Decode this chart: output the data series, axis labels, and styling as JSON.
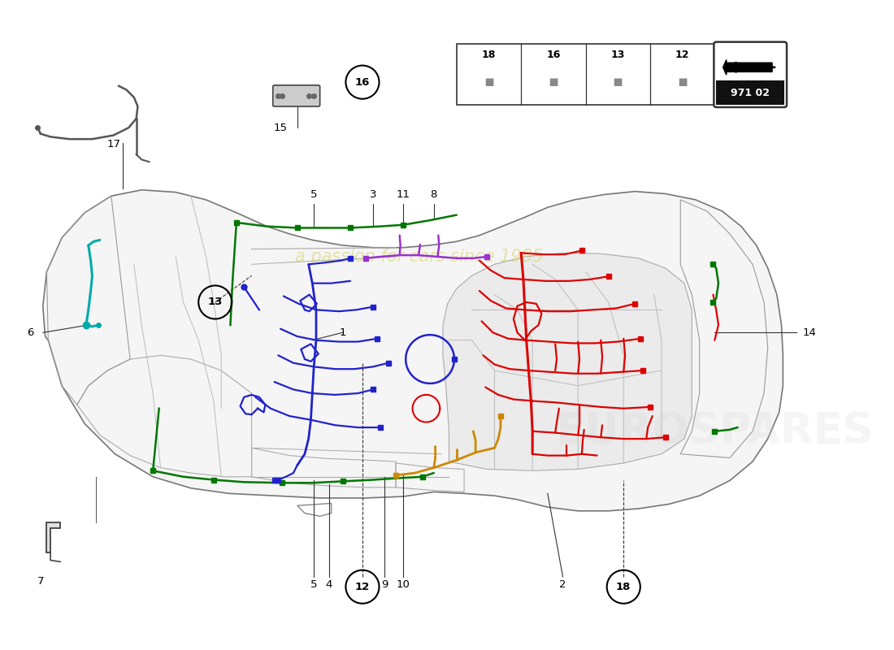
{
  "background_color": "#ffffff",
  "part_number": "971 02",
  "car_outline_color": "#777777",
  "car_inner_color": "#dddddd",
  "wiring_colors": {
    "red": "#dd0000",
    "blue": "#2222cc",
    "green": "#007700",
    "orange": "#cc8800",
    "cyan": "#00aaaa",
    "purple": "#9933cc",
    "pink": "#dd44aa",
    "yellow_green": "#aacc00",
    "dark_gray": "#555555"
  },
  "watermark_text": "a passion for cars since 1985",
  "watermark_color": "#cccc44",
  "watermark_alpha": 0.45,
  "eurospares_color": "#cccccc",
  "eurospares_alpha": 0.18
}
